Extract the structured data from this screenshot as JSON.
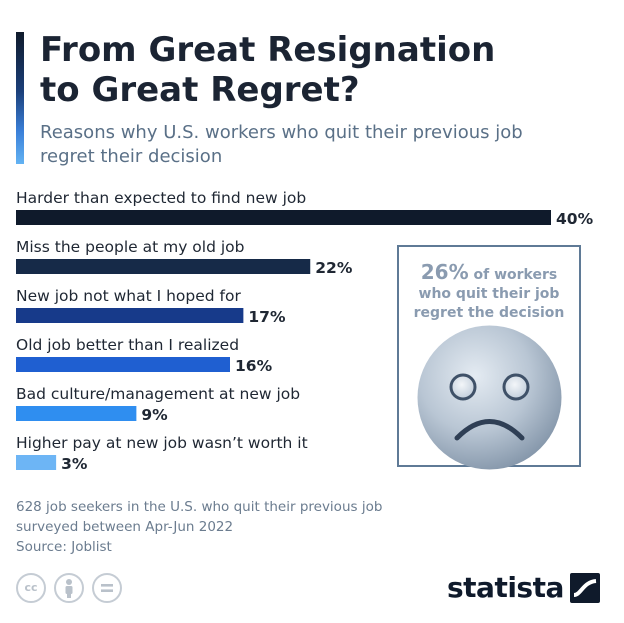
{
  "title_line1": "From Great Resignation",
  "title_line2": "to Great Regret?",
  "subtitle_line1": "Reasons why U.S. workers who quit their previous job",
  "subtitle_line2": "regret their decision",
  "chart_data": {
    "type": "bar",
    "orientation": "horizontal",
    "categories": [
      "Harder than expected to find new job",
      "Miss the people at my old job",
      "New job not what I hoped for",
      "Old job better than I realized",
      "Bad culture/management at new job",
      "Higher pay at new job wasn’t worth it"
    ],
    "values": [
      40,
      22,
      17,
      16,
      9,
      3
    ],
    "value_labels": [
      "40%",
      "22%",
      "17%",
      "16%",
      "9%",
      "3%"
    ],
    "colors": [
      "#0f1a2b",
      "#162a48",
      "#173a8a",
      "#1f5fd1",
      "#2f8ef0",
      "#6db5f5"
    ],
    "unit": "%",
    "xlim": [
      0,
      40
    ],
    "grid": false
  },
  "callout": {
    "percent": "26%",
    "text_line1": "of workers",
    "text_line2": "who quit their job",
    "text_line3": "regret the decision",
    "icon": "sad-face-icon"
  },
  "notes": {
    "line1": "628 job seekers in the U.S. who quit their previous job",
    "line2": "surveyed between Apr-Jun 2022",
    "line3": "Source: Joblist"
  },
  "license_icons": [
    "cc-icon",
    "attribution-icon",
    "no-derivatives-icon"
  ],
  "brand": "statista"
}
